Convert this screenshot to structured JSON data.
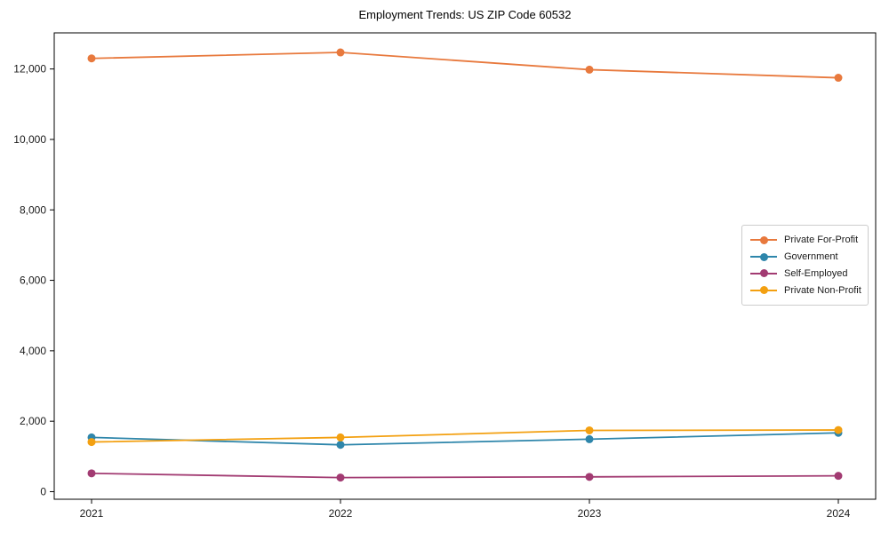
{
  "title": "Employment Trends: US ZIP Code 60532",
  "chart_data": {
    "type": "line",
    "title": "Employment Trends: US ZIP Code 60532",
    "xlabel": "",
    "ylabel": "",
    "x": [
      2021,
      2022,
      2023,
      2024
    ],
    "x_tick_labels": [
      "2021",
      "2022",
      "2023",
      "2024"
    ],
    "series": [
      {
        "name": "Private For-Profit",
        "color": "#E8793D",
        "values": [
          12300,
          12470,
          11980,
          11750
        ]
      },
      {
        "name": "Government",
        "color": "#2E86AB",
        "values": [
          1540,
          1330,
          1490,
          1670
        ]
      },
      {
        "name": "Self-Employed",
        "color": "#A23B72",
        "values": [
          520,
          400,
          420,
          450
        ]
      },
      {
        "name": "Private Non-Profit",
        "color": "#F3A011",
        "values": [
          1410,
          1540,
          1740,
          1750
        ]
      }
    ],
    "xlim": [
      2020.85,
      2024.15
    ],
    "ylim": [
      -215,
      13025
    ],
    "yticks": [
      0,
      2000,
      4000,
      6000,
      8000,
      10000,
      12000
    ],
    "ytick_labels": [
      "0",
      "2,000",
      "4,000",
      "6,000",
      "8,000",
      "10,000",
      "12,000"
    ],
    "grid": false,
    "legend_position": "middle-right",
    "background_color": "#ffffff",
    "spine_color": "#000000",
    "tick_label_color": "#1a1a1a"
  }
}
